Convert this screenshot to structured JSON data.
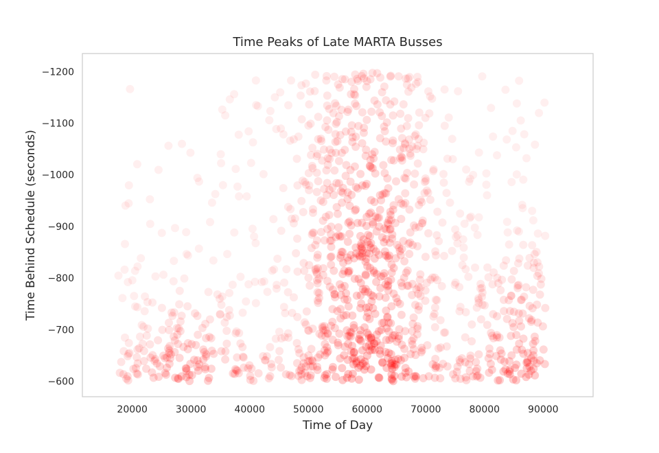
{
  "chart_data": {
    "type": "scatter",
    "title": "Time Peaks of Late MARTA Busses",
    "xlabel": "Time of Day",
    "ylabel": "Time Behind Schedule (seconds)",
    "xlim": [
      11500,
      98500
    ],
    "ylim": [
      -1235,
      -570
    ],
    "y_axis_inverted": true,
    "grid": false,
    "marker_color": "#ff0000",
    "marker_alpha": "very low (~0.01)",
    "x_ticks": [
      20000,
      30000,
      40000,
      50000,
      60000,
      70000,
      80000,
      90000
    ],
    "x_tick_labels": [
      "20000",
      "30000",
      "40000",
      "50000",
      "60000",
      "70000",
      "80000",
      "90000"
    ],
    "y_ticks": [
      -1200,
      -1100,
      -1000,
      -900,
      -800,
      -700,
      -600
    ],
    "y_tick_labels": [
      "−1200",
      "−1100",
      "−1000",
      "−900",
      "−800",
      "−700",
      "−600"
    ],
    "x_range_of_points": [
      17500,
      90500
    ],
    "y_range_of_points": [
      -1200,
      -600
    ],
    "density_peaks": [
      {
        "x": 30000,
        "y_top": -760,
        "y_bottom": -600,
        "weight": 0.55
      },
      {
        "x": 60000,
        "y_top": -1200,
        "y_bottom": -600,
        "weight": 1.0
      },
      {
        "x": 87000,
        "y_top": -820,
        "y_bottom": -600,
        "weight": 0.7
      }
    ]
  }
}
